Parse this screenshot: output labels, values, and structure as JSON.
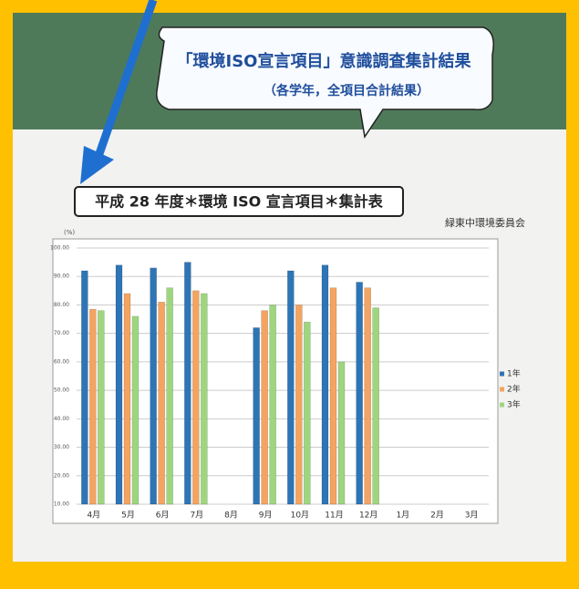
{
  "poster": {
    "bubble_title": "「環境ISO宣言項目」意識調査集計結果",
    "bubble_subtitle": "（各学年，全項目合計結果）"
  },
  "chart_data": {
    "type": "bar",
    "title": "平成 28 年度＊環境 ISO 宣言項目＊集計表",
    "subtitle": "緑東中環境委員会",
    "y_label": "(%)",
    "categories": [
      "4月",
      "5月",
      "6月",
      "7月",
      "8月",
      "9月",
      "10月",
      "11月",
      "12月",
      "1月",
      "2月",
      "3月"
    ],
    "series": [
      {
        "name": "1年",
        "color": "#2e75b6",
        "values": [
          92,
          94,
          93,
          95,
          null,
          72,
          92,
          94,
          88,
          null,
          null,
          null
        ]
      },
      {
        "name": "2年",
        "color": "#f4a460",
        "values": [
          78.5,
          84,
          81,
          85,
          null,
          78,
          80,
          86,
          86,
          null,
          null,
          null
        ]
      },
      {
        "name": "3年",
        "color": "#9ed67f",
        "values": [
          78,
          76,
          86,
          84,
          null,
          80,
          74,
          60,
          79,
          null,
          null,
          null
        ]
      }
    ],
    "ylim": [
      10,
      100
    ],
    "yticks": [
      {
        "value": 10,
        "label": "10.00"
      },
      {
        "value": 20,
        "label": "20.00"
      },
      {
        "value": 30,
        "label": "30.00"
      },
      {
        "value": 40,
        "label": "40.00"
      },
      {
        "value": 50,
        "label": "50.00"
      },
      {
        "value": 60,
        "label": "60.00"
      },
      {
        "value": 70,
        "label": "70.00"
      },
      {
        "value": 80,
        "label": "80.00"
      },
      {
        "value": 90,
        "label": "90.00"
      },
      {
        "value": 100,
        "label": "100.00"
      }
    ],
    "grid": true,
    "legend": "right"
  }
}
